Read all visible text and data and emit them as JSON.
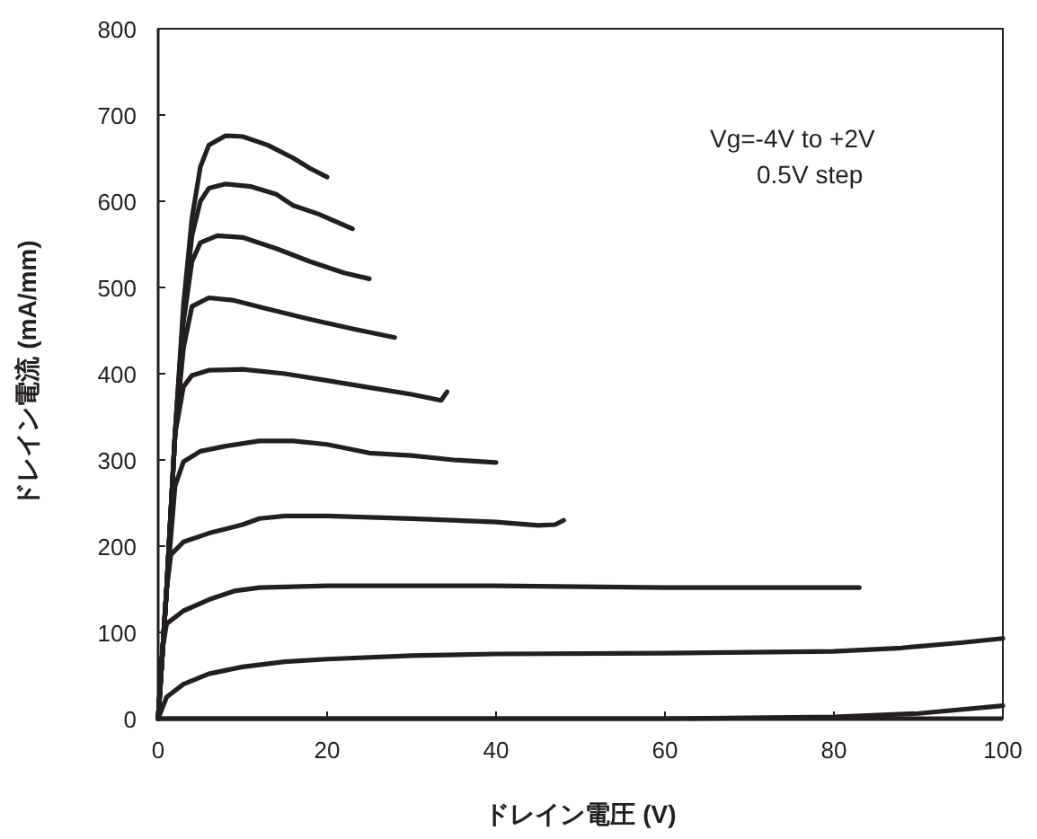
{
  "chart_data": {
    "type": "line",
    "xlabel": "ドレイン電圧 (V)",
    "ylabel": "ドレイン電流 (mA/mm)",
    "annotations": [
      "Vg=-4V to +2V",
      "0.5V step"
    ],
    "xlim": [
      0,
      100
    ],
    "ylim": [
      0,
      800
    ],
    "xticks": [
      0,
      20,
      40,
      60,
      80,
      100
    ],
    "yticks": [
      0,
      100,
      200,
      300,
      400,
      500,
      600,
      700,
      800
    ],
    "grid": false,
    "marker": "none",
    "line_style": "solid",
    "series": [
      {
        "color": "#231f20",
        "x": [
          0,
          1,
          2,
          3,
          4,
          5,
          6,
          8,
          10,
          13,
          16,
          18,
          20
        ],
        "values": [
          0,
          150,
          330,
          480,
          580,
          640,
          665,
          676,
          675,
          665,
          650,
          638,
          628
        ]
      },
      {
        "color": "#231f20",
        "x": [
          0,
          1,
          2,
          3,
          4,
          5,
          6,
          8,
          11,
          14,
          16,
          19,
          23
        ],
        "values": [
          0,
          150,
          330,
          470,
          560,
          600,
          615,
          620,
          617,
          608,
          595,
          585,
          568
        ]
      },
      {
        "color": "#231f20",
        "x": [
          0,
          1,
          2,
          3,
          4,
          5,
          7,
          10,
          14,
          18,
          22,
          25
        ],
        "values": [
          0,
          150,
          330,
          460,
          530,
          552,
          560,
          558,
          545,
          530,
          517,
          510
        ]
      },
      {
        "color": "#231f20",
        "x": [
          0,
          1,
          2,
          3,
          4,
          6,
          9,
          13,
          18,
          23,
          28
        ],
        "values": [
          0,
          150,
          330,
          430,
          478,
          488,
          485,
          475,
          463,
          452,
          442
        ]
      },
      {
        "color": "#231f20",
        "x": [
          0,
          1,
          2,
          3,
          4,
          6,
          10,
          15,
          20,
          25,
          30,
          33.5,
          34.2
        ],
        "values": [
          0,
          150,
          330,
          385,
          398,
          404,
          405,
          400,
          392,
          384,
          376,
          369,
          379
        ]
      },
      {
        "color": "#231f20",
        "x": [
          0,
          1,
          2,
          3,
          5,
          8,
          12,
          16,
          20,
          25,
          30,
          35,
          40
        ],
        "values": [
          0,
          150,
          270,
          298,
          310,
          316,
          322,
          322,
          318,
          308,
          305,
          300,
          297
        ]
      },
      {
        "color": "#231f20",
        "x": [
          0,
          1,
          1.5,
          3,
          6,
          10,
          12,
          15,
          20,
          30,
          40,
          45,
          47,
          48
        ],
        "values": [
          0,
          150,
          190,
          205,
          215,
          225,
          232,
          235,
          235,
          232,
          228,
          224,
          225,
          230
        ]
      },
      {
        "color": "#231f20",
        "x": [
          0,
          0.5,
          1,
          3,
          6,
          9,
          12,
          20,
          40,
          60,
          83
        ],
        "values": [
          0,
          80,
          110,
          125,
          138,
          148,
          152,
          154,
          154,
          152,
          152
        ]
      },
      {
        "color": "#231f20",
        "x": [
          0,
          1,
          3,
          6,
          10,
          15,
          20,
          30,
          40,
          60,
          80,
          88,
          95,
          100
        ],
        "values": [
          0,
          25,
          40,
          52,
          60,
          66,
          69,
          73,
          75,
          76,
          78,
          82,
          88,
          93
        ]
      },
      {
        "color": "#231f20",
        "x": [
          0,
          60,
          80,
          90,
          100
        ],
        "values": [
          0,
          0,
          2,
          6,
          15
        ]
      }
    ]
  }
}
